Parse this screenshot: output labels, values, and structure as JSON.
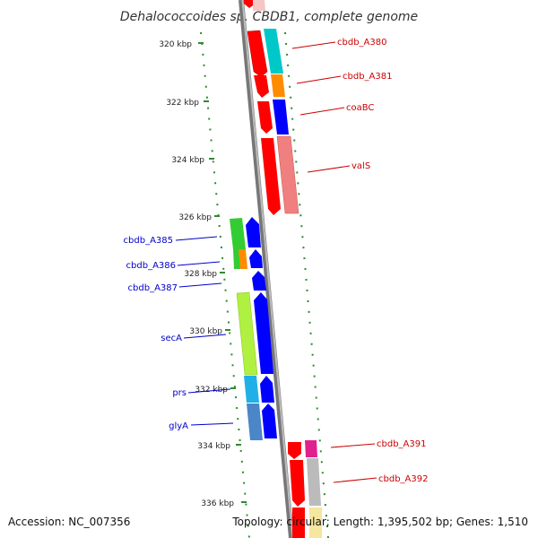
{
  "title": "Dehalococcoides sp. CBDB1, complete genome",
  "footer": {
    "accession": "Accession: NC_007356",
    "topology": "Topology: circular; Length: 1,395,502 bp; Genes: 1,510"
  },
  "ticks": [
    {
      "label": "320 kbp"
    },
    {
      "label": "322 kbp"
    },
    {
      "label": "324 kbp"
    },
    {
      "label": "326 kbp"
    },
    {
      "label": "328 kbp"
    },
    {
      "label": "330 kbp"
    },
    {
      "label": "332 kbp"
    },
    {
      "label": "334 kbp"
    },
    {
      "label": "336 kbp"
    }
  ],
  "right_labels": [
    {
      "name": "cbdb_A380"
    },
    {
      "name": "cbdb_A381"
    },
    {
      "name": "coaBC"
    },
    {
      "name": "valS"
    },
    {
      "name": "cbdb_A391"
    },
    {
      "name": "cbdb_A392"
    }
  ],
  "left_labels": [
    {
      "name": "cbdb_A385"
    },
    {
      "name": "cbdb_A386"
    },
    {
      "name": "cbdb_A387"
    },
    {
      "name": "secA"
    },
    {
      "name": "prs"
    },
    {
      "name": "glyA"
    }
  ],
  "colors": {
    "backbone": "#888888",
    "dots": "#2e8b2e",
    "right_label": "#cc0000",
    "left_label": "#0000cc",
    "cds_red": "#ff0000",
    "cds_blue": "#0000ff",
    "cyan": "#00c8c8",
    "orange": "#ff8c00",
    "pink": "#f08080",
    "green": "#33cc33",
    "light_green": "#b0f040",
    "sky": "#1fb0e8",
    "steel": "#4a86c8",
    "magenta": "#e0208c",
    "gray": "#bbbbbb",
    "light_yellow": "#f5e6a0"
  }
}
